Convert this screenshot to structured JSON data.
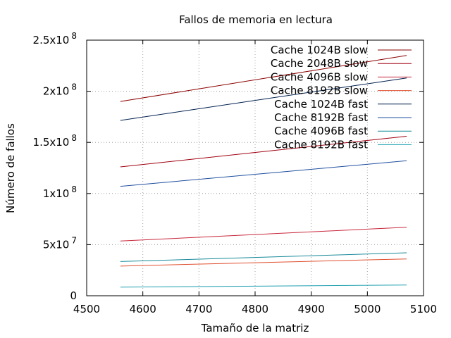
{
  "chart_data": {
    "type": "line",
    "title": "Fallos de memoria en lectura",
    "xlabel": "Tamaño de la matriz",
    "ylabel": "Número de fallos",
    "xlim": [
      4500,
      5100
    ],
    "ylim": [
      0,
      250000000
    ],
    "grid": true,
    "legend_position": "top-right",
    "x_ticks": [
      {
        "value": 4500,
        "label": "4500"
      },
      {
        "value": 4600,
        "label": "4600"
      },
      {
        "value": 4700,
        "label": "4700"
      },
      {
        "value": 4800,
        "label": "4800"
      },
      {
        "value": 4900,
        "label": "4900"
      },
      {
        "value": 5000,
        "label": "5000"
      },
      {
        "value": 5100,
        "label": "5100"
      }
    ],
    "y_ticks": [
      {
        "value": 0,
        "base": "0",
        "exp": ""
      },
      {
        "value": 50000000,
        "base": "5x10",
        "exp": "7"
      },
      {
        "value": 100000000,
        "base": "1x10",
        "exp": "8"
      },
      {
        "value": 150000000,
        "base": "1.5x10",
        "exp": "8"
      },
      {
        "value": 200000000,
        "base": "2x10",
        "exp": "8"
      },
      {
        "value": 250000000,
        "base": "2.5x10",
        "exp": "8"
      }
    ],
    "series": [
      {
        "name": "Cache 1024B slow",
        "color": "#8b0000",
        "x": [
          4560,
          5070
        ],
        "y": [
          190000000,
          235000000
        ]
      },
      {
        "name": "Cache 2048B slow",
        "color": "#a00010",
        "x": [
          4560,
          5070
        ],
        "y": [
          126000000,
          156000000
        ]
      },
      {
        "name": "Cache 4096B slow",
        "color": "#c8283c",
        "x": [
          4560,
          5070
        ],
        "y": [
          53500000,
          67000000
        ]
      },
      {
        "name": "Cache 8192B slow",
        "color": "#e05030",
        "x": [
          4560,
          5070
        ],
        "y": [
          29000000,
          36000000
        ]
      },
      {
        "name": "Cache 1024B fast",
        "color": "#00204f",
        "x": [
          4560,
          5070
        ],
        "y": [
          171500000,
          213000000
        ]
      },
      {
        "name": "Cache 8192B fast",
        "color": "#1f4f9f",
        "x": [
          4560,
          5070
        ],
        "y": [
          107000000,
          132000000
        ]
      },
      {
        "name": "Cache 4096B fast",
        "color": "#1a8a9a",
        "x": [
          4560,
          5070
        ],
        "y": [
          33500000,
          42000000
        ]
      },
      {
        "name": "Cache 8192B fast",
        "color": "#20a0b0",
        "x": [
          4560,
          5070
        ],
        "y": [
          8500000,
          10500000
        ]
      }
    ]
  }
}
